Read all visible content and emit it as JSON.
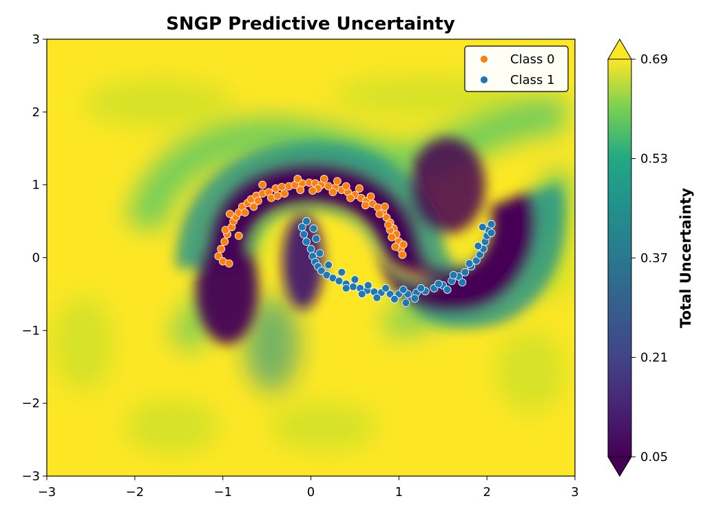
{
  "chart_data": {
    "type": "scatter",
    "title": "SNGP Predictive Uncertainty",
    "xlabel": "",
    "ylabel": "",
    "xlim": [
      -3,
      3
    ],
    "ylim": [
      -3,
      3
    ],
    "x_ticks": [
      {
        "value": -3,
        "label": "−3"
      },
      {
        "value": -2,
        "label": "−2"
      },
      {
        "value": -1,
        "label": "−1"
      },
      {
        "value": 0,
        "label": "0"
      },
      {
        "value": 1,
        "label": "1"
      },
      {
        "value": 2,
        "label": "2"
      },
      {
        "value": 3,
        "label": "3"
      }
    ],
    "y_ticks": [
      {
        "value": -3,
        "label": "−3"
      },
      {
        "value": -2,
        "label": "−2"
      },
      {
        "value": -1,
        "label": "−1"
      },
      {
        "value": 0,
        "label": "0"
      },
      {
        "value": 1,
        "label": "1"
      },
      {
        "value": 2,
        "label": "2"
      },
      {
        "value": 3,
        "label": "3"
      }
    ],
    "grid": false,
    "legend_position": "top-right",
    "background": {
      "type": "contourf",
      "colormap": "viridis",
      "low_uncertainty_region": "along the two moon arcs (dark purple)",
      "high_uncertainty_region": "away from the data (yellow)"
    },
    "colorbar": {
      "label": "Total Uncertainty",
      "min": 0.05,
      "max": 0.69,
      "extend": "both",
      "ticks": [
        {
          "value": 0.05,
          "label": "0.05"
        },
        {
          "value": 0.21,
          "label": "0.21"
        },
        {
          "value": 0.37,
          "label": "0.37"
        },
        {
          "value": 0.53,
          "label": "0.53"
        },
        {
          "value": 0.69,
          "label": "0.69"
        }
      ]
    },
    "series": [
      {
        "name": "Class 0",
        "color": "#ff7f0e",
        "points": [
          [
            -1.05,
            0.02
          ],
          [
            -1.02,
            0.12
          ],
          [
            -0.98,
            0.22
          ],
          [
            -0.95,
            0.32
          ],
          [
            -0.97,
            0.38
          ],
          [
            -0.9,
            0.42
          ],
          [
            -0.88,
            0.5
          ],
          [
            -0.85,
            0.56
          ],
          [
            -0.82,
            0.62
          ],
          [
            -0.78,
            0.7
          ],
          [
            -0.72,
            0.75
          ],
          [
            -0.68,
            0.8
          ],
          [
            -0.62,
            0.85
          ],
          [
            -0.55,
            0.88
          ],
          [
            -0.48,
            0.9
          ],
          [
            -0.4,
            0.95
          ],
          [
            -0.33,
            0.97
          ],
          [
            -0.25,
            0.98
          ],
          [
            -0.18,
            1.0
          ],
          [
            -0.1,
            1.02
          ],
          [
            -0.02,
            1.03
          ],
          [
            0.05,
            1.02
          ],
          [
            0.12,
            1.0
          ],
          [
            0.2,
            0.98
          ],
          [
            0.28,
            0.96
          ],
          [
            0.35,
            0.93
          ],
          [
            0.42,
            0.9
          ],
          [
            0.5,
            0.86
          ],
          [
            0.57,
            0.82
          ],
          [
            0.63,
            0.78
          ],
          [
            0.7,
            0.74
          ],
          [
            0.76,
            0.69
          ],
          [
            0.82,
            0.62
          ],
          [
            0.86,
            0.55
          ],
          [
            0.9,
            0.48
          ],
          [
            0.94,
            0.4
          ],
          [
            0.97,
            0.32
          ],
          [
            1.0,
            0.22
          ],
          [
            1.02,
            0.12
          ],
          [
            1.04,
            0.04
          ],
          [
            -1.0,
            -0.05
          ],
          [
            -0.93,
            -0.08
          ],
          [
            -0.75,
            0.62
          ],
          [
            -0.6,
            0.78
          ],
          [
            -0.45,
            0.82
          ],
          [
            -0.3,
            0.88
          ],
          [
            -0.12,
            0.93
          ],
          [
            0.08,
            0.95
          ],
          [
            0.25,
            0.9
          ],
          [
            0.45,
            0.82
          ],
          [
            0.62,
            0.72
          ],
          [
            0.78,
            0.6
          ],
          [
            0.9,
            0.38
          ],
          [
            0.96,
            0.15
          ],
          [
            -0.55,
            1.0
          ],
          [
            -0.38,
            0.85
          ],
          [
            0.15,
            1.08
          ],
          [
            0.3,
            1.05
          ],
          [
            0.55,
            0.95
          ],
          [
            0.88,
            0.45
          ],
          [
            -0.82,
            0.3
          ],
          [
            -0.92,
            0.6
          ],
          [
            -0.65,
            0.7
          ],
          [
            -0.15,
            1.08
          ],
          [
            0.02,
            0.92
          ],
          [
            0.4,
            0.98
          ],
          [
            0.68,
            0.84
          ],
          [
            0.84,
            0.7
          ],
          [
            0.92,
            0.28
          ],
          [
            1.05,
            0.18
          ]
        ]
      },
      {
        "name": "Class 1",
        "color": "#1f77b4",
        "points": [
          [
            -0.1,
            0.42
          ],
          [
            -0.08,
            0.32
          ],
          [
            -0.05,
            0.22
          ],
          [
            0.0,
            0.12
          ],
          [
            0.02,
            0.02
          ],
          [
            0.05,
            -0.06
          ],
          [
            0.08,
            -0.12
          ],
          [
            0.12,
            -0.18
          ],
          [
            0.18,
            -0.24
          ],
          [
            0.25,
            -0.28
          ],
          [
            0.32,
            -0.32
          ],
          [
            0.4,
            -0.36
          ],
          [
            0.48,
            -0.4
          ],
          [
            0.56,
            -0.42
          ],
          [
            0.64,
            -0.45
          ],
          [
            0.72,
            -0.47
          ],
          [
            0.8,
            -0.48
          ],
          [
            0.9,
            -0.5
          ],
          [
            1.0,
            -0.5
          ],
          [
            1.1,
            -0.5
          ],
          [
            1.2,
            -0.48
          ],
          [
            1.3,
            -0.46
          ],
          [
            1.4,
            -0.42
          ],
          [
            1.5,
            -0.38
          ],
          [
            1.6,
            -0.32
          ],
          [
            1.68,
            -0.26
          ],
          [
            1.75,
            -0.2
          ],
          [
            1.82,
            -0.12
          ],
          [
            1.88,
            -0.04
          ],
          [
            1.92,
            0.04
          ],
          [
            1.96,
            0.12
          ],
          [
            1.98,
            0.22
          ],
          [
            2.0,
            0.3
          ],
          [
            2.02,
            0.38
          ],
          [
            2.05,
            0.46
          ],
          [
            1.95,
            0.42
          ],
          [
            -0.05,
            0.5
          ],
          [
            0.03,
            0.4
          ],
          [
            0.06,
            0.26
          ],
          [
            0.1,
            0.06
          ],
          [
            0.2,
            -0.1
          ],
          [
            0.35,
            -0.2
          ],
          [
            0.5,
            -0.3
          ],
          [
            0.65,
            -0.38
          ],
          [
            0.85,
            -0.42
          ],
          [
            1.05,
            -0.44
          ],
          [
            1.25,
            -0.42
          ],
          [
            1.45,
            -0.36
          ],
          [
            1.62,
            -0.24
          ],
          [
            1.8,
            -0.08
          ],
          [
            1.9,
            0.16
          ],
          [
            2.05,
            0.34
          ],
          [
            0.75,
            -0.55
          ],
          [
            1.08,
            -0.62
          ],
          [
            0.95,
            -0.57
          ],
          [
            1.18,
            -0.56
          ],
          [
            0.58,
            -0.5
          ],
          [
            0.4,
            -0.42
          ],
          [
            1.55,
            -0.44
          ],
          [
            1.72,
            -0.34
          ]
        ]
      }
    ]
  }
}
